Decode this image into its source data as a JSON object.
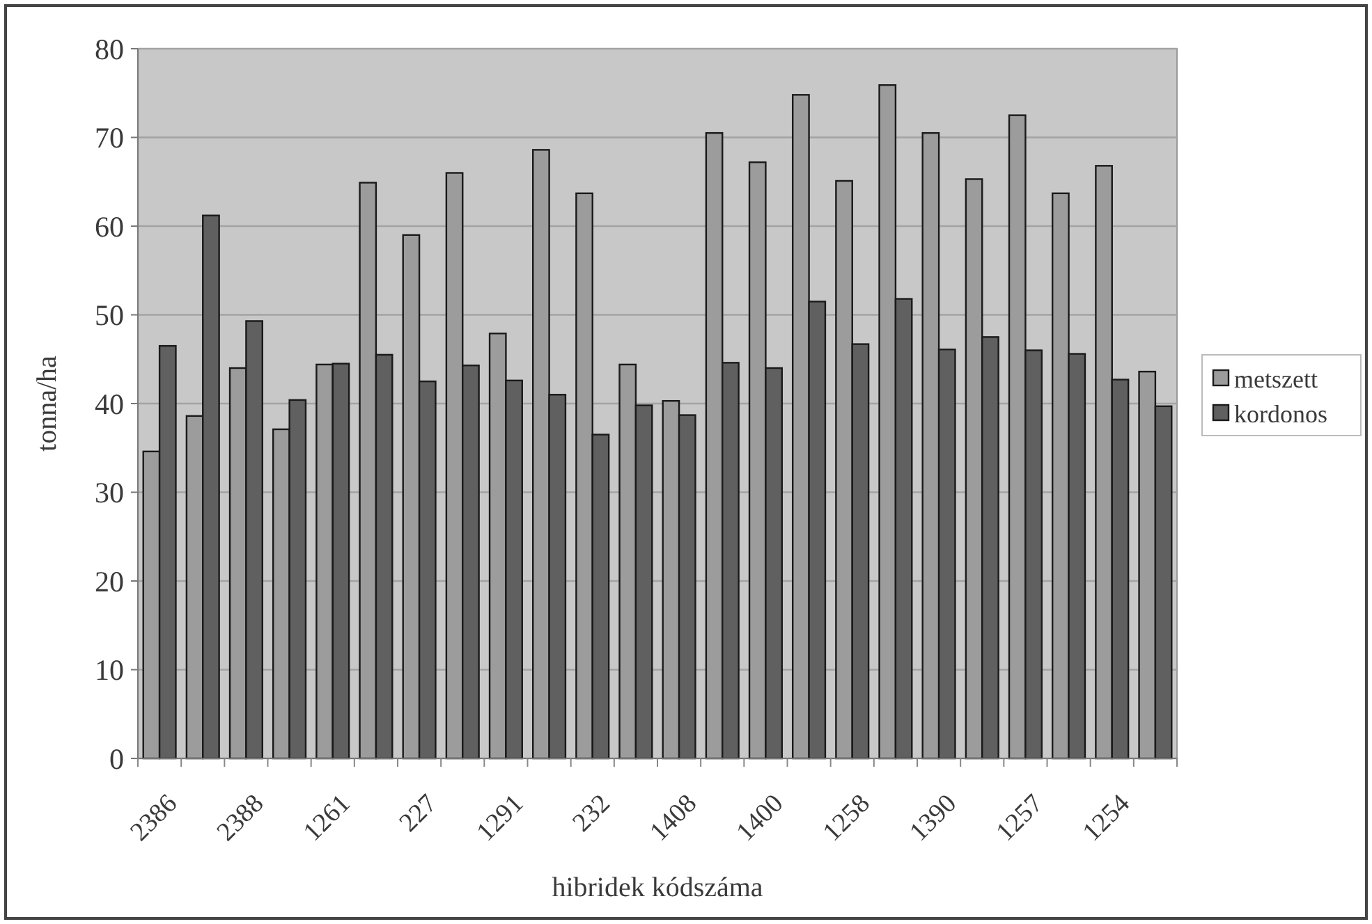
{
  "chart_data": {
    "type": "bar",
    "xlabel": "hibridek kódszáma",
    "ylabel": "tonna/ha",
    "categories": [
      "2386",
      null,
      "2388",
      null,
      "1261",
      null,
      "227",
      null,
      "1291",
      null,
      "232",
      null,
      "1408",
      null,
      "1400",
      null,
      "1258",
      null,
      "1390",
      null,
      "1257",
      null,
      "1254",
      null
    ],
    "series": [
      {
        "name": "metszett",
        "color": "#9c9c9c",
        "values": [
          34.6,
          38.6,
          44.0,
          37.1,
          44.4,
          64.9,
          59.0,
          66.0,
          47.9,
          68.6,
          63.7,
          44.4,
          40.3,
          70.5,
          67.2,
          74.8,
          65.1,
          75.9,
          70.5,
          65.3,
          72.5,
          63.7,
          66.8,
          43.6
        ]
      },
      {
        "name": "kordonos",
        "color": "#606060",
        "values": [
          46.5,
          61.2,
          49.3,
          40.4,
          44.5,
          45.5,
          42.5,
          44.3,
          42.6,
          41.0,
          36.5,
          39.8,
          38.7,
          44.6,
          44.0,
          51.5,
          46.7,
          51.8,
          46.1,
          47.5,
          46.0,
          45.6,
          42.7,
          39.7
        ]
      }
    ],
    "ylim": [
      0,
      80
    ],
    "yticks": [
      0,
      10,
      20,
      30,
      40,
      50,
      60,
      70,
      80
    ],
    "grid": "y",
    "legend": "right"
  }
}
